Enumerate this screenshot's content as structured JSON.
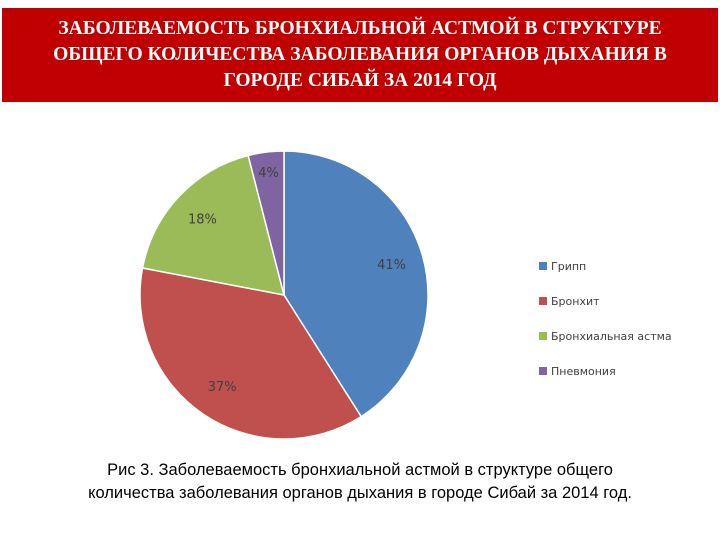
{
  "header": {
    "title_lines": [
      "ЗАБОЛЕВАЕМОСТЬ БРОНХИАЛЬНОЙ АСТМОЙ В СТРУКТУРЕ",
      "ОБЩЕГО КОЛИЧЕСТВА ЗАБОЛЕВАНИЯ ОРГАНОВ ДЫХАНИЯ В",
      "ГОРОДЕ СИБАЙ ЗА 2014 ГОД"
    ]
  },
  "chart_data": {
    "type": "pie",
    "categories": [
      "Грипп",
      "Бронхит",
      "Бронхиальная астма",
      "Пневмония"
    ],
    "values": [
      41,
      37,
      18,
      4
    ],
    "labels": [
      "41%",
      "37%",
      "18%",
      "4%"
    ],
    "colors": [
      "#4f81bd",
      "#c0504d",
      "#9bbb59",
      "#8064a2"
    ],
    "start": "12 o'clock, clockwise",
    "legend_position": "right"
  },
  "caption": {
    "line1": "Рис 3. Заболеваемость бронхиальной астмой в структуре общего",
    "line2": "количества заболевания органов дыхания в городе Сибай за 2014 год."
  }
}
